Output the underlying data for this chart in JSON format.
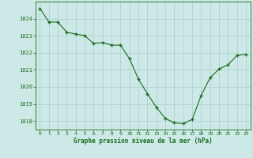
{
  "x": [
    0,
    1,
    2,
    3,
    4,
    5,
    6,
    7,
    8,
    9,
    10,
    11,
    12,
    13,
    14,
    15,
    16,
    17,
    18,
    19,
    20,
    21,
    22,
    23
  ],
  "y": [
    1024.6,
    1023.8,
    1023.8,
    1023.2,
    1023.1,
    1023.0,
    1022.55,
    1022.6,
    1022.45,
    1022.45,
    1021.65,
    1020.45,
    1019.6,
    1018.8,
    1018.15,
    1017.9,
    1017.85,
    1018.1,
    1019.5,
    1020.55,
    1021.05,
    1021.3,
    1021.85,
    1021.9
  ],
  "line_color": "#1a6b1a",
  "marker_color": "#1a6b1a",
  "bg_color": "#cce9e7",
  "grid_color": "#b0d0ce",
  "xlabel": "Graphe pression niveau de la mer (hPa)",
  "xlabel_color": "#1a6b1a",
  "ylim_min": 1017.5,
  "ylim_max": 1025.0,
  "xlim_min": -0.5,
  "xlim_max": 23.5,
  "yticks": [
    1018,
    1019,
    1020,
    1021,
    1022,
    1023,
    1024
  ],
  "xticks": [
    0,
    1,
    2,
    3,
    4,
    5,
    6,
    7,
    8,
    9,
    10,
    11,
    12,
    13,
    14,
    15,
    16,
    17,
    18,
    19,
    20,
    21,
    22,
    23
  ]
}
